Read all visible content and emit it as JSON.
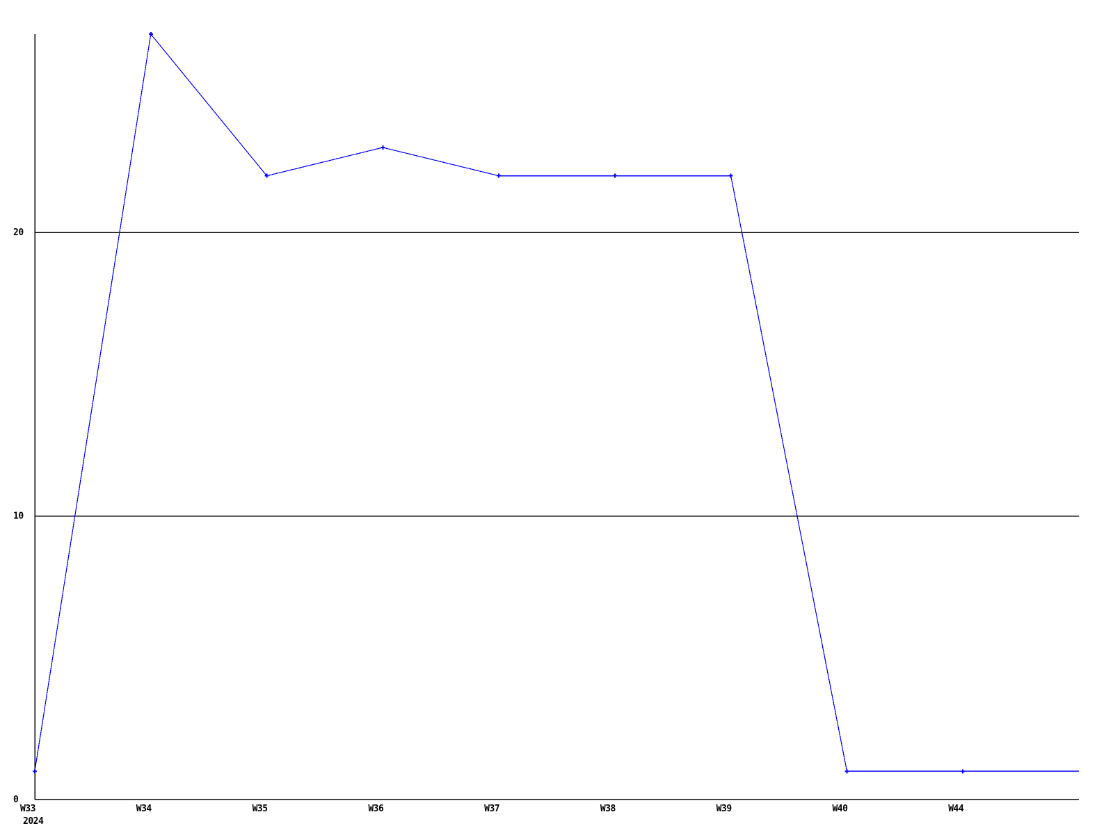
{
  "chart_data": {
    "type": "line",
    "title": "",
    "categories": [
      "W33",
      "W34",
      "W35",
      "W36",
      "W37",
      "W38",
      "W39",
      "W40",
      "W44"
    ],
    "values": [
      1,
      27,
      22,
      23,
      22,
      22,
      22,
      1,
      1
    ],
    "year_label": "2024",
    "xlabel": "",
    "ylabel": "",
    "y_ticks": [
      0,
      10,
      20
    ],
    "ylim": [
      0,
      27
    ],
    "grid": "horizontal",
    "legend_position": "none",
    "marker_style": "plus",
    "line_extends_to_right_edge": true,
    "trailing_value": 1,
    "colors": {
      "line": "#0000ff",
      "axis": "#000000",
      "gridline": "#000000",
      "text": "#000000",
      "background": "#ffffff"
    }
  }
}
